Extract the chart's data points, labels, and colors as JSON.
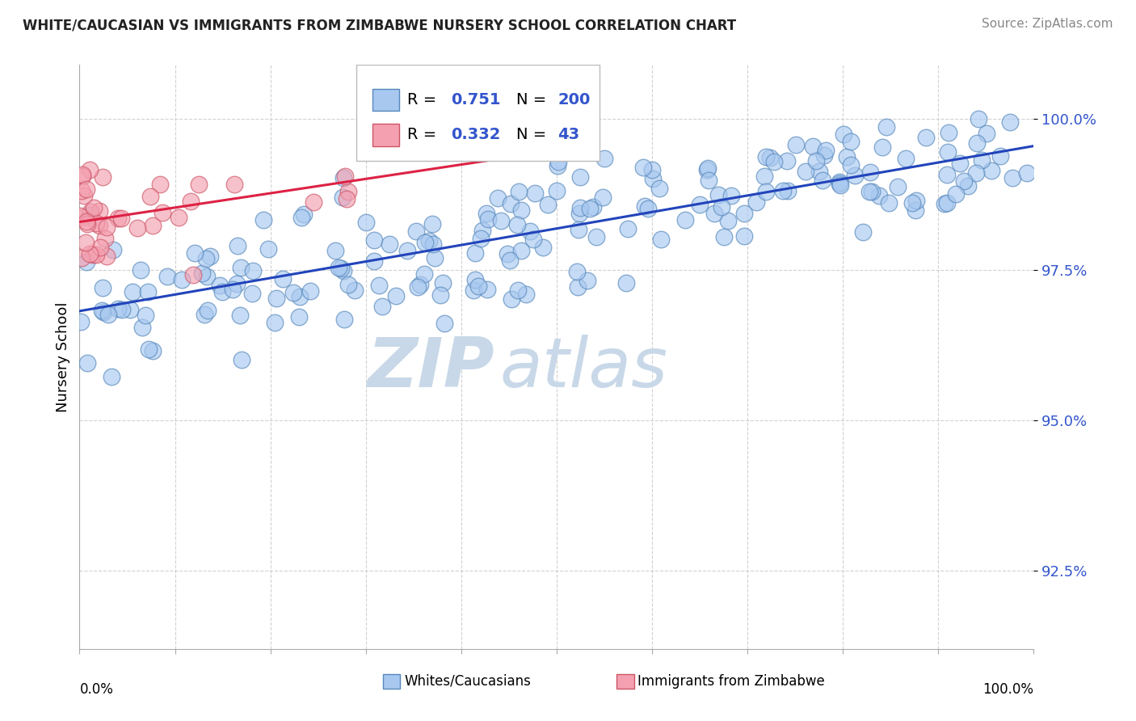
{
  "title": "WHITE/CAUCASIAN VS IMMIGRANTS FROM ZIMBABWE NURSERY SCHOOL CORRELATION CHART",
  "source": "Source: ZipAtlas.com",
  "ylabel": "Nursery School",
  "y_ticks": [
    92.5,
    95.0,
    97.5,
    100.0
  ],
  "y_tick_labels": [
    "92.5%",
    "95.0%",
    "97.5%",
    "100.0%"
  ],
  "xmin": 0.0,
  "xmax": 100.0,
  "ymin": 91.2,
  "ymax": 100.9,
  "blue_R": 0.751,
  "blue_N": 200,
  "pink_R": 0.332,
  "pink_N": 43,
  "blue_color": "#a8c8f0",
  "blue_edge": "#5588bb",
  "pink_color": "#f4a0b0",
  "pink_edge": "#cc5566",
  "blue_line_color": "#2244bb",
  "pink_line_color": "#dd2244",
  "legend_label_blue": "Whites/Caucasians",
  "legend_label_pink": "Immigrants from Zimbabwe",
  "watermark_zip": "ZIP",
  "watermark_atlas": "atlas",
  "watermark_color": "#c8d8e8",
  "title_color": "#222222",
  "source_color": "#888888",
  "tick_color": "#3355cc",
  "grid_color": "#cccccc"
}
